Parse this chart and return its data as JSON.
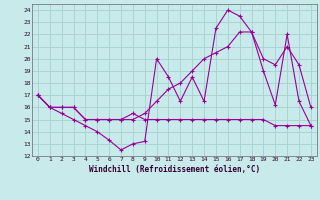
{
  "xlabel": "Windchill (Refroidissement éolien,°C)",
  "background_color": "#c8eaea",
  "grid_color": "#aad4d4",
  "line_color": "#990099",
  "xlim": [
    -0.5,
    23.5
  ],
  "ylim": [
    12,
    24.5
  ],
  "xticks": [
    0,
    1,
    2,
    3,
    4,
    5,
    6,
    7,
    8,
    9,
    10,
    11,
    12,
    13,
    14,
    15,
    16,
    17,
    18,
    19,
    20,
    21,
    22,
    23
  ],
  "yticks": [
    12,
    13,
    14,
    15,
    16,
    17,
    18,
    19,
    20,
    21,
    22,
    23,
    24
  ],
  "line1_x": [
    0,
    1,
    2,
    3,
    4,
    5,
    6,
    7,
    8,
    9,
    10,
    11,
    12,
    13,
    14,
    15,
    16,
    17,
    18,
    19,
    20,
    21,
    22,
    23
  ],
  "line1_y": [
    17,
    16,
    15.5,
    15,
    14.5,
    14,
    13.3,
    12.5,
    13,
    13.2,
    20,
    18.5,
    16.5,
    18.5,
    16.5,
    22.5,
    24.0,
    23.5,
    22.2,
    19,
    16.2,
    22,
    16.5,
    14.5
  ],
  "line2_x": [
    0,
    1,
    2,
    3,
    4,
    5,
    6,
    7,
    8,
    9,
    10,
    11,
    12,
    13,
    14,
    15,
    16,
    17,
    18,
    19,
    20,
    21,
    22,
    23
  ],
  "line2_y": [
    17,
    16,
    16,
    16,
    15,
    15,
    15,
    15,
    15.5,
    15,
    15,
    15,
    15,
    15,
    15,
    15,
    15,
    15,
    15,
    15,
    14.5,
    14.5,
    14.5,
    14.5
  ],
  "line3_x": [
    0,
    1,
    2,
    3,
    4,
    5,
    6,
    7,
    8,
    9,
    10,
    11,
    12,
    13,
    14,
    15,
    16,
    17,
    18,
    19,
    20,
    21,
    22,
    23
  ],
  "line3_y": [
    17,
    16,
    16,
    16,
    15,
    15,
    15,
    15,
    15,
    15.5,
    16.5,
    17.5,
    18,
    19,
    20,
    20.5,
    21,
    22.2,
    22.2,
    20,
    19.5,
    21,
    19.5,
    16
  ]
}
